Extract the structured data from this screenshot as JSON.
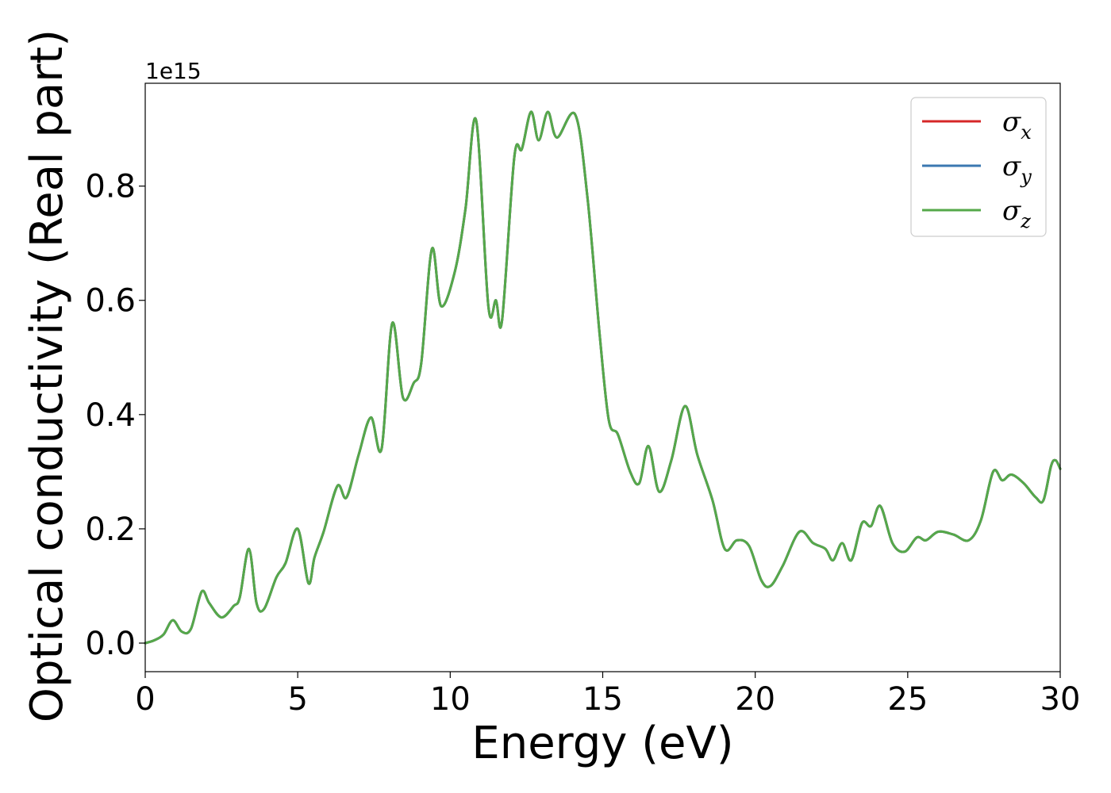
{
  "chart_data": {
    "type": "line",
    "title": "",
    "xlabel": "Energy (eV)",
    "ylabel": "Optical conductivity (Real part)",
    "y_offset_label": "1e15",
    "xlim": [
      0,
      30
    ],
    "ylim": [
      -0.05,
      0.98
    ],
    "xticks": [
      0,
      5,
      10,
      15,
      20,
      25,
      30
    ],
    "yticks": [
      0.0,
      0.2,
      0.4,
      0.6,
      0.8
    ],
    "grid": false,
    "legend_position": "top-right",
    "series": [
      {
        "name": "σx",
        "symbol": "σ",
        "sub": "x",
        "color": "#d62728",
        "visible_behind": true
      },
      {
        "name": "σy",
        "symbol": "σ",
        "sub": "y",
        "color": "#3b78b1",
        "visible_behind": true
      },
      {
        "name": "σz",
        "symbol": "σ",
        "sub": "z",
        "color": "#55a84a",
        "visible_behind": false
      }
    ],
    "x": [
      0,
      0.3,
      0.6,
      0.9,
      1.2,
      1.5,
      1.85,
      2.1,
      2.5,
      2.9,
      3.1,
      3.4,
      3.65,
      3.9,
      4.3,
      4.6,
      5.0,
      5.35,
      5.55,
      5.85,
      6.3,
      6.6,
      7.0,
      7.4,
      7.75,
      8.1,
      8.45,
      8.8,
      9.05,
      9.4,
      9.7,
      10.15,
      10.5,
      10.85,
      11.25,
      11.5,
      11.7,
      12.1,
      12.35,
      12.65,
      12.9,
      13.2,
      13.5,
      14.1,
      14.5,
      14.9,
      15.2,
      15.5,
      15.9,
      16.2,
      16.5,
      16.85,
      17.25,
      17.7,
      18.1,
      18.6,
      19.0,
      19.4,
      19.8,
      20.2,
      20.5,
      20.9,
      21.45,
      21.9,
      22.3,
      22.55,
      22.85,
      23.15,
      23.5,
      23.8,
      24.1,
      24.5,
      24.9,
      25.3,
      25.6,
      26.0,
      26.5,
      27.0,
      27.4,
      27.8,
      28.1,
      28.4,
      28.8,
      29.2,
      29.45,
      29.7,
      29.85,
      30.0
    ],
    "values": [
      0.0,
      0.005,
      0.015,
      0.04,
      0.02,
      0.025,
      0.09,
      0.07,
      0.045,
      0.065,
      0.08,
      0.165,
      0.07,
      0.06,
      0.115,
      0.14,
      0.2,
      0.105,
      0.15,
      0.195,
      0.275,
      0.255,
      0.33,
      0.395,
      0.34,
      0.56,
      0.43,
      0.455,
      0.49,
      0.69,
      0.59,
      0.65,
      0.76,
      0.915,
      0.59,
      0.6,
      0.565,
      0.85,
      0.865,
      0.93,
      0.88,
      0.93,
      0.885,
      0.925,
      0.78,
      0.54,
      0.39,
      0.365,
      0.3,
      0.28,
      0.345,
      0.265,
      0.32,
      0.415,
      0.33,
      0.25,
      0.165,
      0.18,
      0.17,
      0.11,
      0.1,
      0.135,
      0.195,
      0.175,
      0.165,
      0.145,
      0.175,
      0.145,
      0.21,
      0.205,
      0.24,
      0.175,
      0.16,
      0.185,
      0.18,
      0.195,
      0.19,
      0.18,
      0.215,
      0.3,
      0.285,
      0.295,
      0.28,
      0.255,
      0.25,
      0.31,
      0.32,
      0.305
    ]
  }
}
